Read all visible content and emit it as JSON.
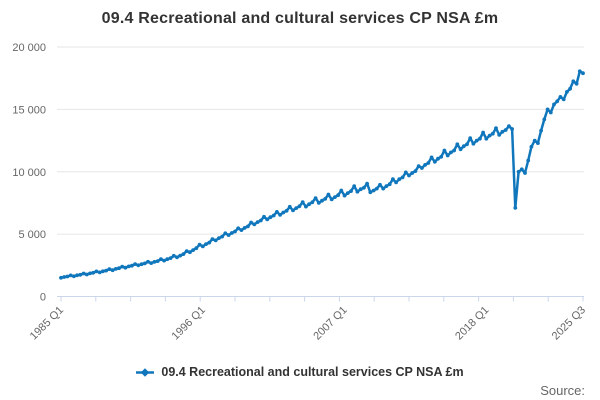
{
  "title": "09.4 Recreational and cultural services CP NSA £m",
  "legend": {
    "label": "09.4 Recreational and cultural services CP NSA £m"
  },
  "source_label": "Source:",
  "colors": {
    "line": "#1077bc",
    "grid": "#e6e6e6",
    "axis": "#ccd6eb",
    "axis_text": "#666666",
    "title_text": "#333333",
    "legend_text": "#333333",
    "source_text": "#666666"
  },
  "y_axis": {
    "max": 20000,
    "ticks": [
      {
        "value": 0,
        "label": "0"
      },
      {
        "value": 5000,
        "label": "5 000"
      },
      {
        "value": 10000,
        "label": "10 000"
      },
      {
        "value": 15000,
        "label": "15 000"
      },
      {
        "value": 20000,
        "label": "20 000"
      }
    ]
  },
  "x_axis": {
    "minor_tick_count": 16,
    "ticks": [
      {
        "quarter_index": 0,
        "label": "1985 Q1"
      },
      {
        "quarter_index": 44,
        "label": "1996 Q1"
      },
      {
        "quarter_index": 88,
        "label": "2007 Q1"
      },
      {
        "quarter_index": 132,
        "label": "2018 Q1"
      },
      {
        "quarter_index": 162,
        "label": "2025 Q3"
      }
    ]
  },
  "chart_data": {
    "type": "line",
    "title": "09.4 Recreational and cultural services CP NSA £m",
    "ylabel": "£m",
    "ylim": [
      0,
      20000
    ],
    "grid": "horizontal",
    "legend_position": "bottom",
    "frequency": "quarterly",
    "x_start": "1985 Q1",
    "x_end": "2025 Q3",
    "series": [
      {
        "name": "09.4 Recreational and cultural services CP NSA £m",
        "values": [
          1500,
          1560,
          1600,
          1690,
          1620,
          1700,
          1740,
          1840,
          1760,
          1850,
          1900,
          2010,
          1930,
          2020,
          2080,
          2200,
          2110,
          2210,
          2270,
          2400,
          2310,
          2410,
          2470,
          2600,
          2500,
          2590,
          2650,
          2780,
          2680,
          2770,
          2840,
          2990,
          2880,
          2990,
          3080,
          3260,
          3140,
          3280,
          3400,
          3640,
          3550,
          3720,
          3870,
          4150,
          4020,
          4200,
          4320,
          4600,
          4500,
          4680,
          4800,
          5070,
          4920,
          5090,
          5210,
          5470,
          5320,
          5500,
          5620,
          5930,
          5780,
          5960,
          6090,
          6390,
          6180,
          6360,
          6490,
          6780,
          6540,
          6730,
          6870,
          7190,
          6900,
          7090,
          7230,
          7560,
          7210,
          7400,
          7550,
          7890,
          7500,
          7680,
          7820,
          8180,
          7780,
          7970,
          8120,
          8500,
          8090,
          8290,
          8450,
          8840,
          8400,
          8600,
          8710,
          9050,
          8350,
          8500,
          8650,
          8950,
          8650,
          8850,
          9000,
          9400,
          9150,
          9400,
          9550,
          9950,
          9700,
          9900,
          10050,
          10450,
          10300,
          10550,
          10700,
          11150,
          10800,
          11050,
          11200,
          11700,
          11300,
          11550,
          11700,
          12200,
          11800,
          12050,
          12200,
          12700,
          12250,
          12500,
          12650,
          13150,
          12650,
          12900,
          13050,
          13500,
          12950,
          13200,
          13350,
          13650,
          13430,
          7100,
          10000,
          10200,
          9900,
          10900,
          12000,
          12500,
          12300,
          13300,
          14200,
          15000,
          14750,
          15400,
          15650,
          16000,
          15800,
          16400,
          16650,
          17250,
          17050,
          18050,
          17900
        ]
      }
    ]
  }
}
